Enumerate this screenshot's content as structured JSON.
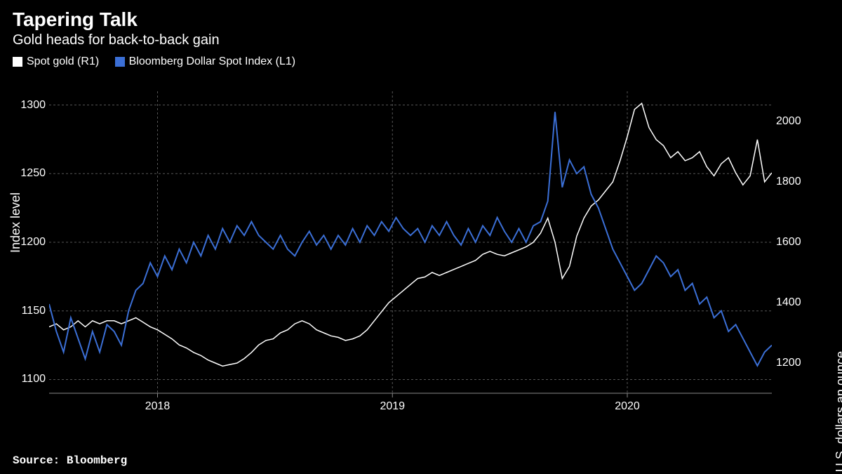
{
  "title": "Tapering Talk",
  "subtitle": "Gold heads for back-to-back gain",
  "source": "Source: Bloomberg",
  "legend": [
    {
      "label": "Spot gold (R1)",
      "color": "#ffffff"
    },
    {
      "label": "Bloomberg Dollar Spot Index (L1)",
      "color": "#3b6fd6"
    }
  ],
  "chart": {
    "type": "line",
    "background_color": "#000000",
    "grid_color": "#555555",
    "axis_color": "#888888",
    "grid_dash": "3 3",
    "left_axis": {
      "label": "Index level",
      "min": 1090,
      "max": 1310,
      "ticks": [
        1100,
        1150,
        1200,
        1250,
        1300
      ],
      "tick_fontsize": 16,
      "label_fontsize": 18,
      "label_color": "#ffffff"
    },
    "right_axis": {
      "label": "U.S. dollars an ounce",
      "min": 1100,
      "max": 2100,
      "ticks": [
        1200,
        1400,
        1600,
        1800,
        2000
      ],
      "tick_fontsize": 16,
      "label_fontsize": 18,
      "label_color": "#ffffff"
    },
    "x_axis": {
      "min": 0,
      "max": 200,
      "ticks": [
        {
          "pos": 30,
          "label": "2018"
        },
        {
          "pos": 95,
          "label": "2019"
        },
        {
          "pos": 160,
          "label": "2020"
        }
      ],
      "tick_fontsize": 16,
      "label_color": "#ffffff"
    },
    "series": [
      {
        "name": "spot-gold",
        "axis": "right",
        "color": "#ffffff",
        "line_width": 1.5,
        "data": [
          [
            0,
            1320
          ],
          [
            2,
            1330
          ],
          [
            4,
            1310
          ],
          [
            6,
            1320
          ],
          [
            8,
            1340
          ],
          [
            10,
            1320
          ],
          [
            12,
            1340
          ],
          [
            14,
            1330
          ],
          [
            16,
            1340
          ],
          [
            18,
            1340
          ],
          [
            20,
            1330
          ],
          [
            22,
            1340
          ],
          [
            24,
            1350
          ],
          [
            26,
            1335
          ],
          [
            28,
            1320
          ],
          [
            30,
            1310
          ],
          [
            32,
            1295
          ],
          [
            34,
            1280
          ],
          [
            36,
            1260
          ],
          [
            38,
            1250
          ],
          [
            40,
            1235
          ],
          [
            42,
            1225
          ],
          [
            44,
            1210
          ],
          [
            46,
            1200
          ],
          [
            48,
            1190
          ],
          [
            50,
            1195
          ],
          [
            52,
            1200
          ],
          [
            54,
            1215
          ],
          [
            56,
            1235
          ],
          [
            58,
            1260
          ],
          [
            60,
            1275
          ],
          [
            62,
            1280
          ],
          [
            64,
            1300
          ],
          [
            66,
            1310
          ],
          [
            68,
            1330
          ],
          [
            70,
            1340
          ],
          [
            72,
            1330
          ],
          [
            74,
            1310
          ],
          [
            76,
            1300
          ],
          [
            78,
            1290
          ],
          [
            80,
            1285
          ],
          [
            82,
            1275
          ],
          [
            84,
            1280
          ],
          [
            86,
            1290
          ],
          [
            88,
            1310
          ],
          [
            90,
            1340
          ],
          [
            92,
            1370
          ],
          [
            94,
            1400
          ],
          [
            96,
            1420
          ],
          [
            98,
            1440
          ],
          [
            100,
            1460
          ],
          [
            102,
            1480
          ],
          [
            104,
            1485
          ],
          [
            106,
            1500
          ],
          [
            108,
            1490
          ],
          [
            110,
            1500
          ],
          [
            112,
            1510
          ],
          [
            114,
            1520
          ],
          [
            116,
            1530
          ],
          [
            118,
            1540
          ],
          [
            120,
            1560
          ],
          [
            122,
            1570
          ],
          [
            124,
            1560
          ],
          [
            126,
            1555
          ],
          [
            128,
            1565
          ],
          [
            130,
            1575
          ],
          [
            132,
            1585
          ],
          [
            134,
            1600
          ],
          [
            136,
            1630
          ],
          [
            138,
            1680
          ],
          [
            140,
            1600
          ],
          [
            142,
            1480
          ],
          [
            144,
            1520
          ],
          [
            146,
            1620
          ],
          [
            148,
            1680
          ],
          [
            150,
            1720
          ],
          [
            152,
            1740
          ],
          [
            154,
            1770
          ],
          [
            156,
            1800
          ],
          [
            158,
            1870
          ],
          [
            160,
            1950
          ],
          [
            162,
            2040
          ],
          [
            164,
            2060
          ],
          [
            166,
            1980
          ],
          [
            168,
            1940
          ],
          [
            170,
            1920
          ],
          [
            172,
            1880
          ],
          [
            174,
            1900
          ],
          [
            176,
            1870
          ],
          [
            178,
            1880
          ],
          [
            180,
            1900
          ],
          [
            182,
            1850
          ],
          [
            184,
            1820
          ],
          [
            186,
            1860
          ],
          [
            188,
            1880
          ],
          [
            190,
            1830
          ],
          [
            192,
            1790
          ],
          [
            194,
            1820
          ],
          [
            196,
            1940
          ],
          [
            198,
            1800
          ],
          [
            200,
            1830
          ]
        ]
      },
      {
        "name": "dollar-index",
        "axis": "left",
        "color": "#3b6fd6",
        "line_width": 2,
        "data": [
          [
            0,
            1155
          ],
          [
            2,
            1135
          ],
          [
            4,
            1120
          ],
          [
            6,
            1145
          ],
          [
            8,
            1130
          ],
          [
            10,
            1115
          ],
          [
            12,
            1135
          ],
          [
            14,
            1120
          ],
          [
            16,
            1140
          ],
          [
            18,
            1135
          ],
          [
            20,
            1125
          ],
          [
            22,
            1150
          ],
          [
            24,
            1165
          ],
          [
            26,
            1170
          ],
          [
            28,
            1185
          ],
          [
            30,
            1175
          ],
          [
            32,
            1190
          ],
          [
            34,
            1180
          ],
          [
            36,
            1195
          ],
          [
            38,
            1185
          ],
          [
            40,
            1200
          ],
          [
            42,
            1190
          ],
          [
            44,
            1205
          ],
          [
            46,
            1195
          ],
          [
            48,
            1210
          ],
          [
            50,
            1200
          ],
          [
            52,
            1212
          ],
          [
            54,
            1205
          ],
          [
            56,
            1215
          ],
          [
            58,
            1205
          ],
          [
            60,
            1200
          ],
          [
            62,
            1195
          ],
          [
            64,
            1205
          ],
          [
            66,
            1195
          ],
          [
            68,
            1190
          ],
          [
            70,
            1200
          ],
          [
            72,
            1208
          ],
          [
            74,
            1198
          ],
          [
            76,
            1205
          ],
          [
            78,
            1195
          ],
          [
            80,
            1205
          ],
          [
            82,
            1198
          ],
          [
            84,
            1210
          ],
          [
            86,
            1200
          ],
          [
            88,
            1212
          ],
          [
            90,
            1205
          ],
          [
            92,
            1215
          ],
          [
            94,
            1208
          ],
          [
            96,
            1218
          ],
          [
            98,
            1210
          ],
          [
            100,
            1205
          ],
          [
            102,
            1210
          ],
          [
            104,
            1200
          ],
          [
            106,
            1212
          ],
          [
            108,
            1205
          ],
          [
            110,
            1215
          ],
          [
            112,
            1205
          ],
          [
            114,
            1198
          ],
          [
            116,
            1210
          ],
          [
            118,
            1200
          ],
          [
            120,
            1212
          ],
          [
            122,
            1205
          ],
          [
            124,
            1218
          ],
          [
            126,
            1208
          ],
          [
            128,
            1200
          ],
          [
            130,
            1210
          ],
          [
            132,
            1200
          ],
          [
            134,
            1212
          ],
          [
            136,
            1215
          ],
          [
            138,
            1230
          ],
          [
            140,
            1295
          ],
          [
            142,
            1240
          ],
          [
            144,
            1260
          ],
          [
            146,
            1250
          ],
          [
            148,
            1255
          ],
          [
            150,
            1235
          ],
          [
            152,
            1225
          ],
          [
            154,
            1210
          ],
          [
            156,
            1195
          ],
          [
            158,
            1185
          ],
          [
            160,
            1175
          ],
          [
            162,
            1165
          ],
          [
            164,
            1170
          ],
          [
            166,
            1180
          ],
          [
            168,
            1190
          ],
          [
            170,
            1185
          ],
          [
            172,
            1175
          ],
          [
            174,
            1180
          ],
          [
            176,
            1165
          ],
          [
            178,
            1170
          ],
          [
            180,
            1155
          ],
          [
            182,
            1160
          ],
          [
            184,
            1145
          ],
          [
            186,
            1150
          ],
          [
            188,
            1135
          ],
          [
            190,
            1140
          ],
          [
            192,
            1130
          ],
          [
            194,
            1120
          ],
          [
            196,
            1110
          ],
          [
            198,
            1120
          ],
          [
            200,
            1125
          ]
        ]
      }
    ]
  }
}
